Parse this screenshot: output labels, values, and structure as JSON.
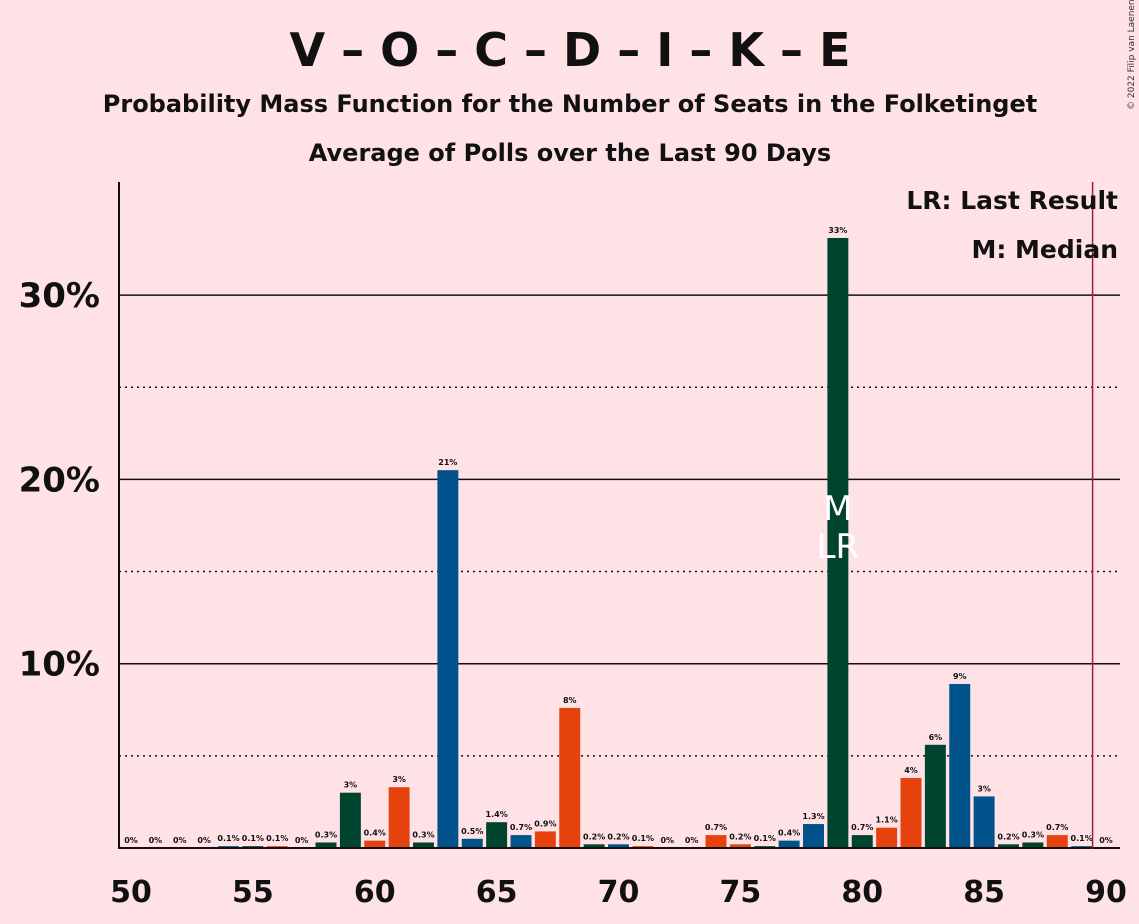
{
  "chart_data": {
    "type": "bar",
    "title": "V – O – C – D – I – K – E",
    "subtitle": "Probability Mass Function for the Number of Seats in the Folketinget",
    "subtitle2": "Average of Polls over the Last 90 Days",
    "copyright": "© 2022 Filip van Laenen",
    "legend": {
      "placement": "top-right",
      "lr": "LR: Last Result",
      "m": "M: Median"
    },
    "xlim": [
      50,
      90
    ],
    "ylim": [
      0,
      35
    ],
    "x_ticks": [
      "50",
      "55",
      "60",
      "65",
      "70",
      "75",
      "80",
      "85",
      "90"
    ],
    "y_ticks": [
      {
        "value": 10,
        "label": "10%"
      },
      {
        "value": 20,
        "label": "20%"
      },
      {
        "value": 30,
        "label": "30%"
      }
    ],
    "y_dotted": [
      5,
      15,
      25
    ],
    "majority_line": 90,
    "median_seat": 79,
    "last_result_seat": 79,
    "median_marker": "M",
    "last_result_marker": "LR",
    "colors": {
      "background": "#ffe2e6",
      "blue": "#00528b",
      "green": "#00432e",
      "orange": "#e5420d",
      "majority": "#a01c38"
    },
    "bars": [
      {
        "seats": 50,
        "value": 0,
        "label": "0%",
        "color": "blue"
      },
      {
        "seats": 51,
        "value": 0,
        "label": "0%",
        "color": "green"
      },
      {
        "seats": 52,
        "value": 0,
        "label": "0%",
        "color": "orange"
      },
      {
        "seats": 53,
        "value": 0,
        "label": "0%",
        "color": "green"
      },
      {
        "seats": 54,
        "value": 0.1,
        "label": "0.1%",
        "color": "blue"
      },
      {
        "seats": 55,
        "value": 0.1,
        "label": "0.1%",
        "color": "green"
      },
      {
        "seats": 56,
        "value": 0.1,
        "label": "0.1%",
        "color": "orange"
      },
      {
        "seats": 57,
        "value": 0,
        "label": "0%",
        "color": "green"
      },
      {
        "seats": 58,
        "value": 0.3,
        "label": "0.3%",
        "color": "green"
      },
      {
        "seats": 59,
        "value": 3.0,
        "label": "3%",
        "color": "green"
      },
      {
        "seats": 60,
        "value": 0.4,
        "label": "0.4%",
        "color": "orange"
      },
      {
        "seats": 61,
        "value": 3.3,
        "label": "3%",
        "color": "orange"
      },
      {
        "seats": 62,
        "value": 0.3,
        "label": "0.3%",
        "color": "green"
      },
      {
        "seats": 63,
        "value": 20.5,
        "label": "21%",
        "color": "blue"
      },
      {
        "seats": 64,
        "value": 0.5,
        "label": "0.5%",
        "color": "blue"
      },
      {
        "seats": 65,
        "value": 1.4,
        "label": "1.4%",
        "color": "green"
      },
      {
        "seats": 66,
        "value": 0.7,
        "label": "0.7%",
        "color": "blue"
      },
      {
        "seats": 67,
        "value": 0.9,
        "label": "0.9%",
        "color": "orange"
      },
      {
        "seats": 68,
        "value": 7.6,
        "label": "8%",
        "color": "orange"
      },
      {
        "seats": 69,
        "value": 0.2,
        "label": "0.2%",
        "color": "green"
      },
      {
        "seats": 70,
        "value": 0.2,
        "label": "0.2%",
        "color": "blue"
      },
      {
        "seats": 71,
        "value": 0.1,
        "label": "0.1%",
        "color": "orange"
      },
      {
        "seats": 72,
        "value": 0,
        "label": "0%",
        "color": "green"
      },
      {
        "seats": 73,
        "value": 0,
        "label": "0%",
        "color": "blue"
      },
      {
        "seats": 74,
        "value": 0.7,
        "label": "0.7%",
        "color": "orange"
      },
      {
        "seats": 75,
        "value": 0.2,
        "label": "0.2%",
        "color": "orange"
      },
      {
        "seats": 76,
        "value": 0.1,
        "label": "0.1%",
        "color": "green"
      },
      {
        "seats": 77,
        "value": 0.4,
        "label": "0.4%",
        "color": "blue"
      },
      {
        "seats": 78,
        "value": 1.3,
        "label": "1.3%",
        "color": "blue"
      },
      {
        "seats": 79,
        "value": 33.1,
        "label": "33%",
        "color": "green"
      },
      {
        "seats": 80,
        "value": 0.7,
        "label": "0.7%",
        "color": "green"
      },
      {
        "seats": 81,
        "value": 1.1,
        "label": "1.1%",
        "color": "orange"
      },
      {
        "seats": 82,
        "value": 3.8,
        "label": "4%",
        "color": "orange"
      },
      {
        "seats": 83,
        "value": 5.6,
        "label": "6%",
        "color": "green"
      },
      {
        "seats": 84,
        "value": 8.9,
        "label": "9%",
        "color": "blue"
      },
      {
        "seats": 85,
        "value": 2.8,
        "label": "3%",
        "color": "blue"
      },
      {
        "seats": 86,
        "value": 0.2,
        "label": "0.2%",
        "color": "green"
      },
      {
        "seats": 87,
        "value": 0.3,
        "label": "0.3%",
        "color": "green"
      },
      {
        "seats": 88,
        "value": 0.7,
        "label": "0.7%",
        "color": "orange"
      },
      {
        "seats": 89,
        "value": 0.1,
        "label": "0.1%",
        "color": "blue"
      },
      {
        "seats": 90,
        "value": 0,
        "label": "0%",
        "color": "green"
      }
    ]
  }
}
